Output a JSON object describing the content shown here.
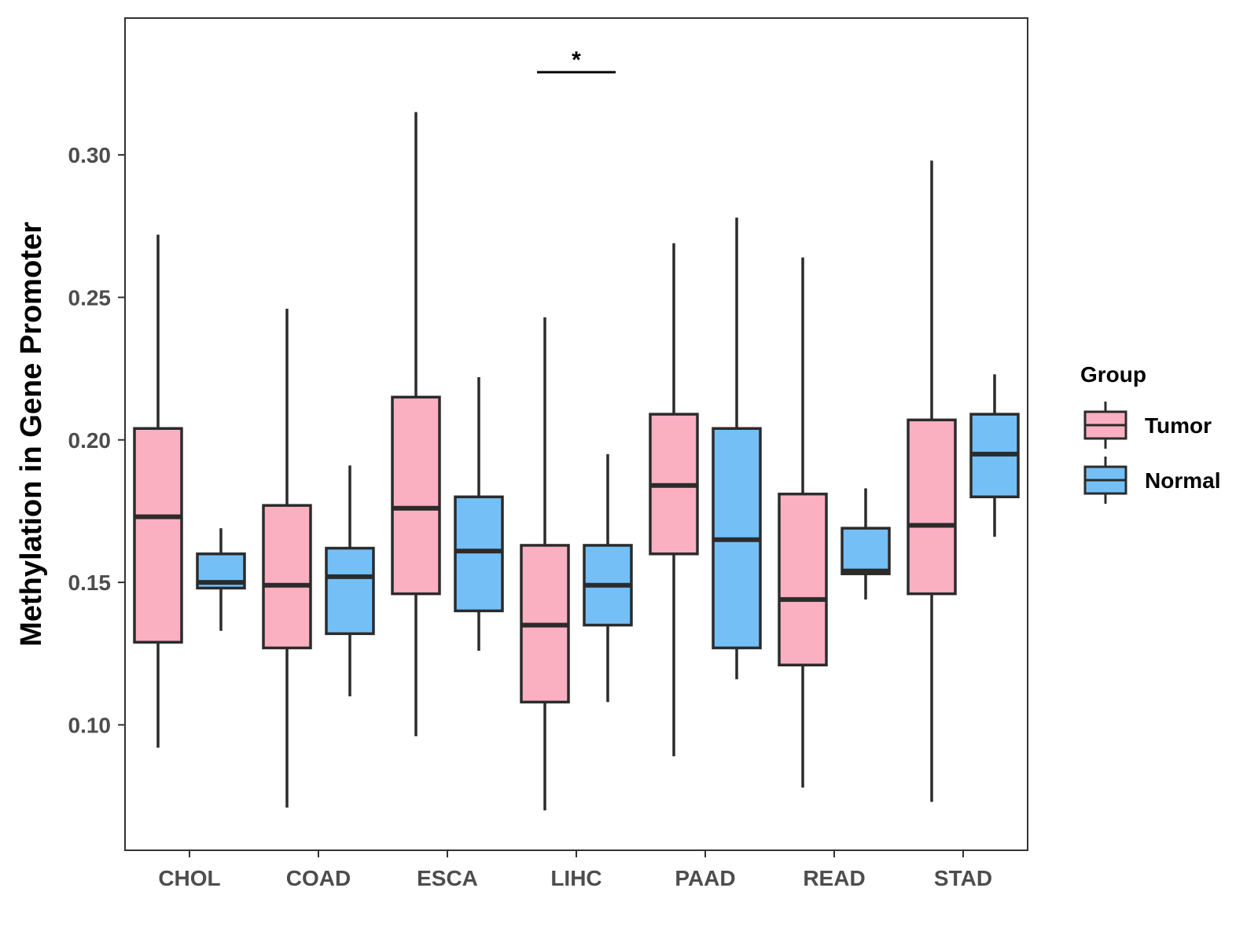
{
  "chart_data": {
    "type": "boxplot",
    "title": "",
    "xlabel": "",
    "ylabel": "Methylation in Gene Promoter",
    "ylim": [
      0.056,
      0.348
    ],
    "yticks": [
      0.1,
      0.15,
      0.2,
      0.25,
      0.3
    ],
    "ytick_labels": [
      "0.10",
      "0.15",
      "0.20",
      "0.25",
      "0.30"
    ],
    "categories": [
      "CHOL",
      "COAD",
      "ESCA",
      "LIHC",
      "PAAD",
      "READ",
      "STAD"
    ],
    "legend": {
      "title": "Group",
      "position": "right",
      "entries": [
        {
          "name": "Tumor",
          "color": "#FBB0C2"
        },
        {
          "name": "Normal",
          "color": "#75BFF7"
        }
      ]
    },
    "series": [
      {
        "name": "Tumor",
        "color": "#FBB0C2",
        "boxes": [
          {
            "min": 0.092,
            "q1": 0.129,
            "median": 0.173,
            "q3": 0.204,
            "max": 0.272
          },
          {
            "min": 0.071,
            "q1": 0.127,
            "median": 0.149,
            "q3": 0.177,
            "max": 0.246
          },
          {
            "min": 0.096,
            "q1": 0.146,
            "median": 0.176,
            "q3": 0.215,
            "max": 0.315
          },
          {
            "min": 0.07,
            "q1": 0.108,
            "median": 0.135,
            "q3": 0.163,
            "max": 0.243
          },
          {
            "min": 0.089,
            "q1": 0.16,
            "median": 0.184,
            "q3": 0.209,
            "max": 0.269
          },
          {
            "min": 0.078,
            "q1": 0.121,
            "median": 0.144,
            "q3": 0.181,
            "max": 0.264
          },
          {
            "min": 0.073,
            "q1": 0.146,
            "median": 0.17,
            "q3": 0.207,
            "max": 0.298
          }
        ]
      },
      {
        "name": "Normal",
        "color": "#75BFF7",
        "boxes": [
          {
            "min": 0.133,
            "q1": 0.148,
            "median": 0.15,
            "q3": 0.16,
            "max": 0.169
          },
          {
            "min": 0.11,
            "q1": 0.132,
            "median": 0.152,
            "q3": 0.162,
            "max": 0.191
          },
          {
            "min": 0.126,
            "q1": 0.14,
            "median": 0.161,
            "q3": 0.18,
            "max": 0.222
          },
          {
            "min": 0.108,
            "q1": 0.135,
            "median": 0.149,
            "q3": 0.163,
            "max": 0.195
          },
          {
            "min": 0.116,
            "q1": 0.127,
            "median": 0.165,
            "q3": 0.204,
            "max": 0.278
          },
          {
            "min": 0.144,
            "q1": 0.153,
            "median": 0.154,
            "q3": 0.169,
            "max": 0.183
          },
          {
            "min": 0.166,
            "q1": 0.18,
            "median": 0.195,
            "q3": 0.209,
            "max": 0.223
          }
        ]
      }
    ],
    "annotations": [
      {
        "category": "LIHC",
        "label": "*",
        "y": 0.329
      }
    ]
  }
}
